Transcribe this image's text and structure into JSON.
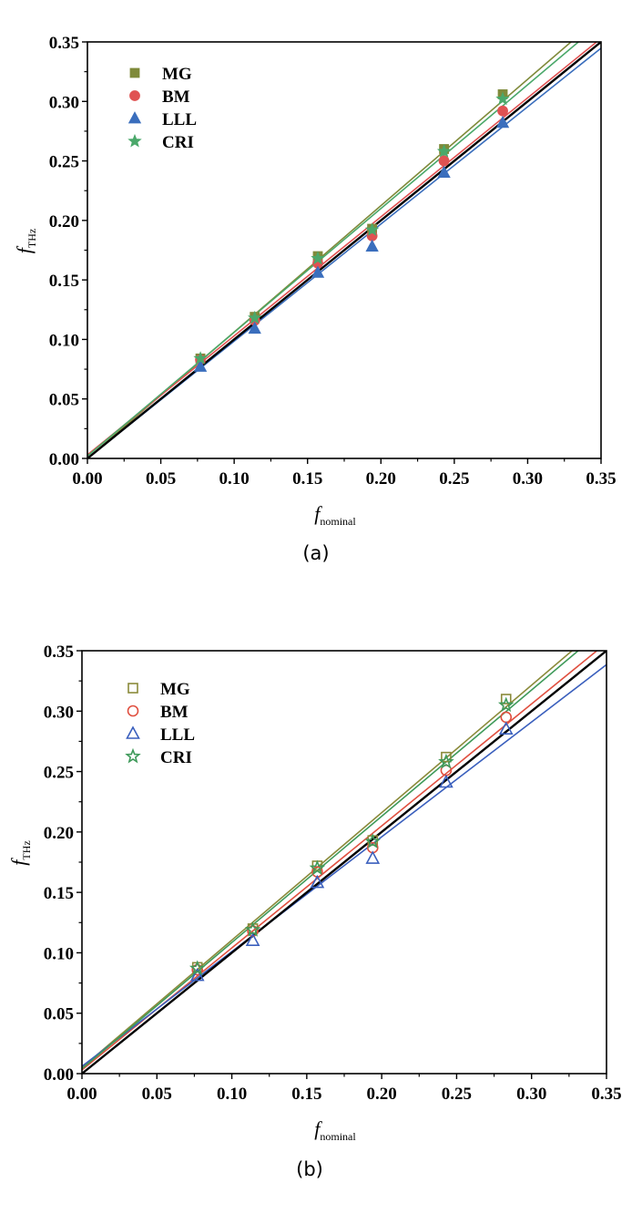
{
  "chart_data": [
    {
      "panel": "(a)",
      "type": "scatter",
      "marker_fill": "filled",
      "xlabel_main": "f",
      "xlabel_sub": "nominal",
      "ylabel_main": "f",
      "ylabel_sub": "THz",
      "xlim": [
        0,
        0.35
      ],
      "ylim": [
        0,
        0.35
      ],
      "xticks": [
        "0.00",
        "0.05",
        "0.10",
        "0.15",
        "0.20",
        "0.25",
        "0.30",
        "0.35"
      ],
      "yticks": [
        "0.00",
        "0.05",
        "0.10",
        "0.15",
        "0.20",
        "0.25",
        "0.30",
        "0.35"
      ],
      "x": [
        0.077,
        0.114,
        0.157,
        0.194,
        0.243,
        0.283
      ],
      "series": [
        {
          "name": "MG",
          "marker": "square",
          "color": "#7f8a3a",
          "values": [
            0.084,
            0.119,
            0.17,
            0.193,
            0.26,
            0.306
          ],
          "fit": {
            "slope": 1.062,
            "intercept": 0.0
          }
        },
        {
          "name": "BM",
          "marker": "circle",
          "color": "#e05252",
          "values": [
            0.083,
            0.116,
            0.164,
            0.187,
            0.25,
            0.292
          ],
          "fit": {
            "slope": 1.0,
            "intercept": 0.003
          }
        },
        {
          "name": "LLL",
          "marker": "triangle",
          "color": "#3a6ebd",
          "values": [
            0.077,
            0.109,
            0.156,
            0.178,
            0.24,
            0.282
          ],
          "fit": {
            "slope": 0.985,
            "intercept": 0.0
          }
        },
        {
          "name": "CRI",
          "marker": "star",
          "color": "#4aa86a",
          "values": [
            0.084,
            0.118,
            0.168,
            0.192,
            0.258,
            0.302
          ],
          "fit": {
            "slope": 1.04,
            "intercept": 0.002
          }
        }
      ],
      "reference_line": {
        "slope": 1.0,
        "intercept": 0.0,
        "color": "#000000"
      }
    },
    {
      "panel": "(b)",
      "type": "scatter",
      "marker_fill": "hollow",
      "xlabel_main": "f",
      "xlabel_sub": "nominal",
      "ylabel_main": "f",
      "ylabel_sub": "THz",
      "xlim": [
        0,
        0.35
      ],
      "ylim": [
        0,
        0.35
      ],
      "xticks": [
        "0.00",
        "0.05",
        "0.10",
        "0.15",
        "0.20",
        "0.25",
        "0.30",
        "0.35"
      ],
      "yticks": [
        "0.00",
        "0.05",
        "0.10",
        "0.15",
        "0.20",
        "0.25",
        "0.30",
        "0.35"
      ],
      "x": [
        0.077,
        0.114,
        0.157,
        0.194,
        0.243,
        0.283
      ],
      "series": [
        {
          "name": "MG",
          "marker": "square",
          "color": "#8a8a3a",
          "values": [
            0.088,
            0.12,
            0.172,
            0.193,
            0.262,
            0.31
          ],
          "fit": {
            "slope": 1.055,
            "intercept": 0.005
          }
        },
        {
          "name": "BM",
          "marker": "circle",
          "color": "#e05040",
          "values": [
            0.086,
            0.118,
            0.167,
            0.187,
            0.251,
            0.295
          ],
          "fit": {
            "slope": 1.01,
            "intercept": 0.003
          }
        },
        {
          "name": "LLL",
          "marker": "triangle",
          "color": "#3a5fbd",
          "values": [
            0.081,
            0.11,
            0.158,
            0.178,
            0.241,
            0.285
          ],
          "fit": {
            "slope": 0.95,
            "intercept": 0.006
          }
        },
        {
          "name": "CRI",
          "marker": "star",
          "color": "#3f9a5a",
          "values": [
            0.087,
            0.119,
            0.17,
            0.192,
            0.258,
            0.305
          ],
          "fit": {
            "slope": 1.045,
            "intercept": 0.004
          }
        }
      ],
      "reference_line": {
        "slope": 1.0,
        "intercept": 0.0,
        "color": "#000000"
      }
    }
  ]
}
